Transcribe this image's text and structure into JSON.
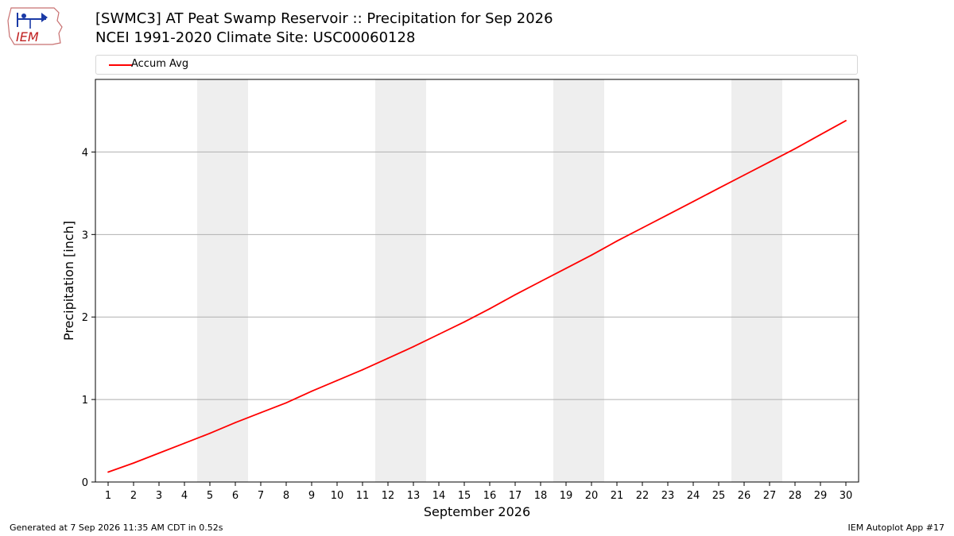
{
  "header": {
    "title_line1": "[SWMC3] AT Peat Swamp Reservoir :: Precipitation for Sep 2026",
    "title_line2": "NCEI 1991-2020 Climate Site: USC00060128"
  },
  "logo": {
    "text": "IEM",
    "icon": "iem-logo-icon"
  },
  "footer": {
    "generated": "Generated at 7 Sep 2026 11:35 AM CDT in 0.52s",
    "app": "IEM Autoplot App #17"
  },
  "colors": {
    "series": "#ff0000",
    "weekend_band": "#eeeeee",
    "grid": "#b0b0b0"
  },
  "chart_data": {
    "type": "line",
    "xlabel": "September 2026",
    "ylabel": "Precipitation [inch]",
    "x": [
      1,
      2,
      3,
      4,
      5,
      6,
      7,
      8,
      9,
      10,
      11,
      12,
      13,
      14,
      15,
      16,
      17,
      18,
      19,
      20,
      21,
      22,
      23,
      24,
      25,
      26,
      27,
      28,
      29,
      30
    ],
    "xlim": [
      0.5,
      30.5
    ],
    "ylim": [
      0,
      4.88
    ],
    "yticks": [
      0,
      1,
      2,
      3,
      4
    ],
    "grid": "y",
    "legend": "top",
    "weekend_bands": [
      [
        4.5,
        6.5
      ],
      [
        11.5,
        13.5
      ],
      [
        18.5,
        20.5
      ],
      [
        25.5,
        27.5
      ]
    ],
    "series": [
      {
        "name": "Accum Avg",
        "color": "#ff0000",
        "values": [
          0.12,
          0.23,
          0.35,
          0.47,
          0.59,
          0.72,
          0.84,
          0.96,
          1.1,
          1.23,
          1.36,
          1.5,
          1.64,
          1.79,
          1.94,
          2.1,
          2.27,
          2.43,
          2.59,
          2.75,
          2.92,
          3.08,
          3.24,
          3.4,
          3.56,
          3.72,
          3.88,
          4.04,
          4.21,
          4.38
        ]
      }
    ]
  }
}
